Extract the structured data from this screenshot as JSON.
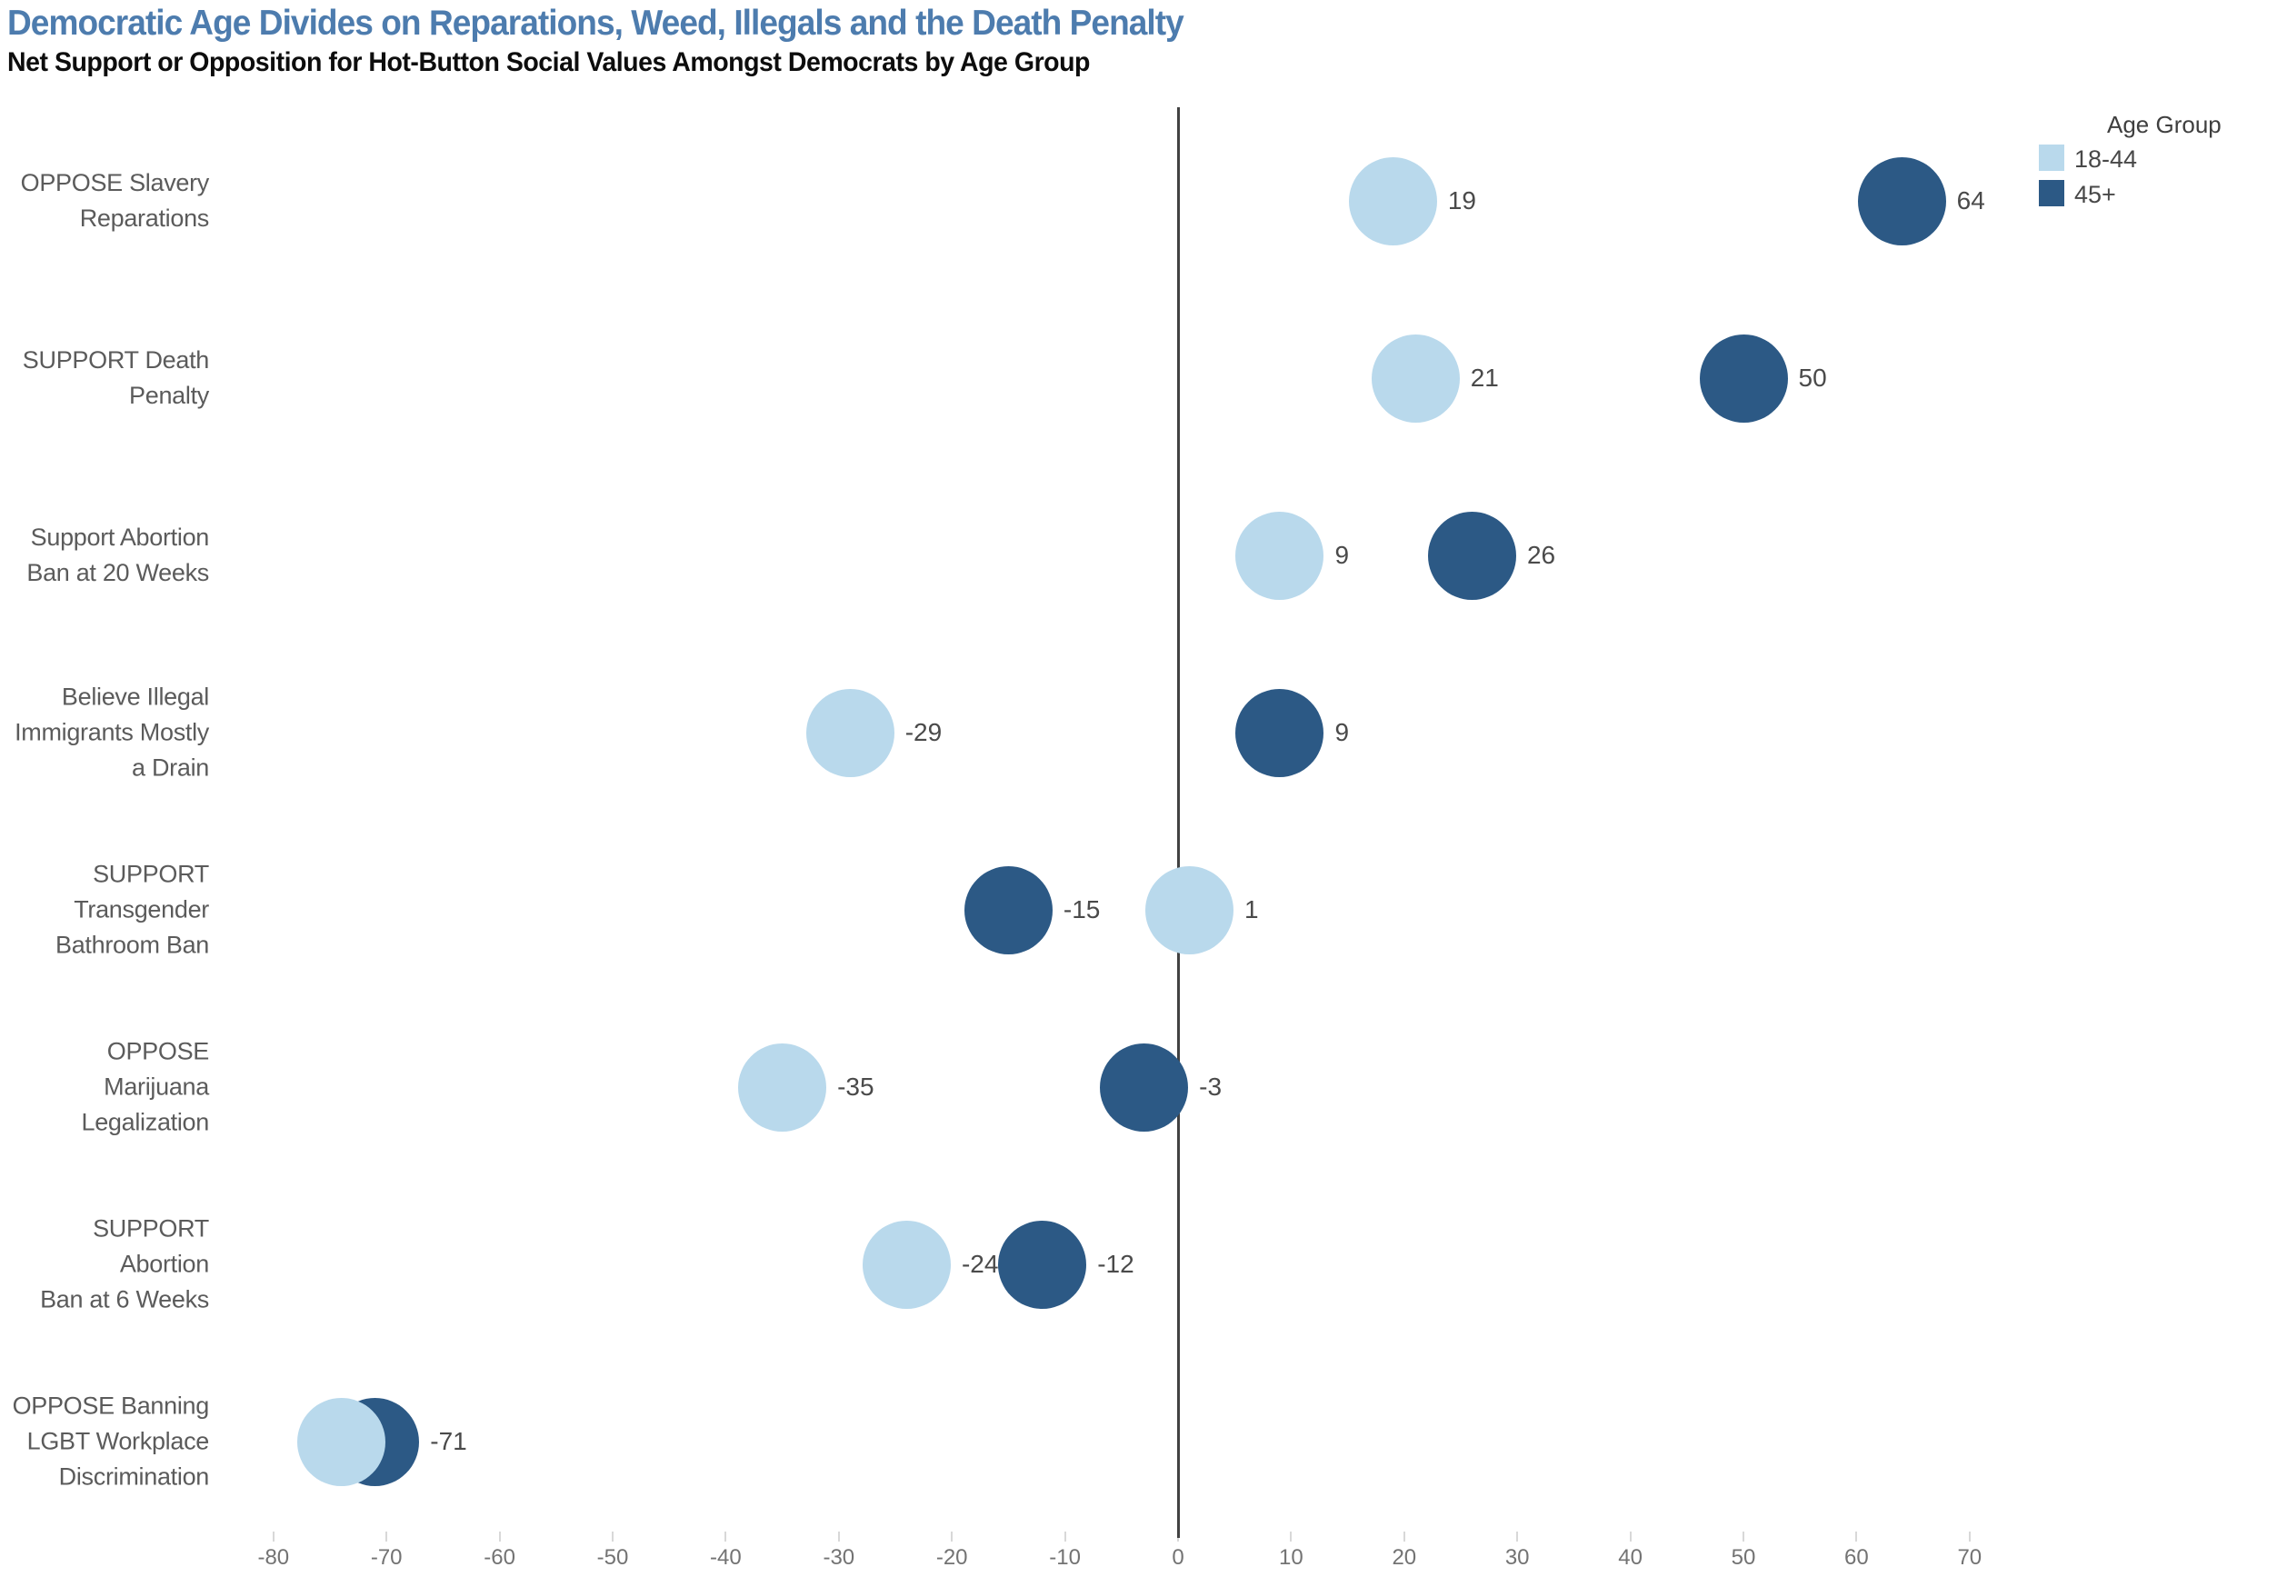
{
  "header": {
    "title": "Democratic Age Divides on Reparations, Weed, Illegals and the Death Penalty",
    "subtitle": "Net Support or Opposition for Hot-Button Social Values Amongst Democrats by Age Group",
    "title_color": "#4d7cae"
  },
  "legend": {
    "title": "Age Group",
    "entries": [
      {
        "label": "18-44",
        "color": "#b9d9ec"
      },
      {
        "label": "45+",
        "color": "#2c5985"
      }
    ]
  },
  "chart_data": {
    "type": "scatter",
    "subtype": "horizontal-dot-plot",
    "title": "Democratic Age Divides on Reparations, Weed, Illegals and the Death Penalty",
    "subtitle": "Net Support or Opposition for Hot-Button Social Values Amongst Democrats by Age Group",
    "legend_title": "Age Group",
    "legend_position": "top-right",
    "grid": false,
    "zero_line": true,
    "categories": [
      "OPPOSE Slavery Reparations",
      "SUPPORT Death Penalty",
      "Support Abortion Ban at 20 Weeks",
      "Believe Illegal Immigrants Mostly a Drain",
      "SUPPORT Transgender Bathroom Ban",
      "OPPOSE Marijuana Legalization",
      "SUPPORT Abortion Ban at 6 Weeks",
      "OPPOSE Banning LGBT Workplace Discrimination"
    ],
    "category_lines": [
      [
        "OPPOSE Slavery",
        "Reparations"
      ],
      [
        "SUPPORT Death",
        "Penalty"
      ],
      [
        "Support Abortion",
        "Ban at 20 Weeks"
      ],
      [
        "Believe Illegal",
        "Immigrants Mostly",
        "a Drain"
      ],
      [
        "SUPPORT",
        "Transgender",
        "Bathroom Ban"
      ],
      [
        "OPPOSE Marijuana",
        "Legalization"
      ],
      [
        "SUPPORT Abortion",
        "Ban at 6 Weeks"
      ],
      [
        "OPPOSE Banning",
        "LGBT Workplace",
        "Discrimination"
      ]
    ],
    "series": [
      {
        "name": "18-44",
        "color": "#b9d9ec",
        "values": [
          19,
          21,
          9,
          -29,
          1,
          -35,
          -24,
          -74
        ],
        "value_labels": [
          "19",
          "21",
          "9",
          "-29",
          "1",
          "-35",
          "-24",
          ""
        ]
      },
      {
        "name": "45+",
        "color": "#2c5985",
        "values": [
          64,
          50,
          26,
          9,
          -15,
          -3,
          -12,
          -71
        ],
        "value_labels": [
          "64",
          "50",
          "26",
          "9",
          "-15",
          "-3",
          "-12",
          "-71"
        ]
      }
    ],
    "x_axis": {
      "range": [
        -88,
        98
      ],
      "ticks": [
        -80,
        -70,
        -60,
        -50,
        -40,
        -30,
        -20,
        -10,
        0,
        10,
        20,
        30,
        40,
        50,
        60,
        70
      ],
      "tick_labels": [
        "-80",
        "-70",
        "-60",
        "-50",
        "-40",
        "-30",
        "-20",
        "-10",
        "0",
        "10",
        "20",
        "30",
        "40",
        "50",
        "60",
        "70"
      ]
    }
  }
}
